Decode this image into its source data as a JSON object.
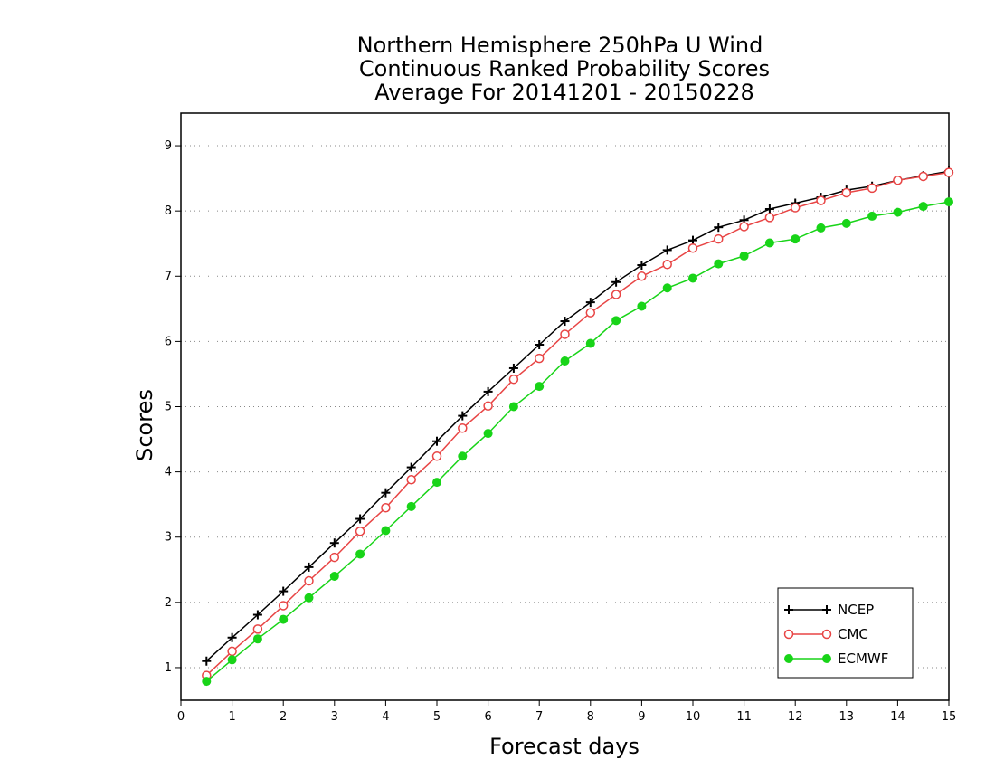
{
  "chart_data": {
    "type": "line",
    "title": [
      "Northern Hemisphere 250hPa U Wind",
      "Continuous Ranked Probability Scores",
      "Average For 20141201 - 20150228"
    ],
    "xlabel": "Forecast days",
    "ylabel": "Scores",
    "xlim": [
      0,
      15
    ],
    "ylim": [
      0.5,
      9.5
    ],
    "xticks": [
      "0",
      "1",
      "2",
      "3",
      "4",
      "5",
      "6",
      "7",
      "8",
      "9",
      "10",
      "11",
      "12",
      "13",
      "14",
      "15"
    ],
    "yticks": [
      "1",
      "2",
      "3",
      "4",
      "5",
      "6",
      "7",
      "8",
      "9"
    ],
    "grid": "horizontal dotted",
    "legend_position": "bottom-right",
    "x": [
      0.5,
      1,
      1.5,
      2,
      2.5,
      3,
      3.5,
      4,
      4.5,
      5,
      5.5,
      6,
      6.5,
      7,
      7.5,
      8,
      8.5,
      9,
      9.5,
      10,
      10.5,
      11,
      11.5,
      12,
      12.5,
      13,
      13.5,
      14,
      14.5,
      15
    ],
    "series": [
      {
        "name": "NCEP",
        "color": "#000000",
        "marker": "plus",
        "values": [
          1.1,
          1.46,
          1.81,
          2.17,
          2.54,
          2.91,
          3.28,
          3.68,
          4.07,
          4.47,
          4.86,
          5.23,
          5.59,
          5.95,
          6.31,
          6.6,
          6.91,
          7.17,
          7.4,
          7.55,
          7.75,
          7.86,
          8.03,
          8.12,
          8.21,
          8.32,
          8.38,
          8.47,
          8.54,
          8.61
        ]
      },
      {
        "name": "CMC",
        "color": "#e84545",
        "marker": "open-circle",
        "values": [
          0.88,
          1.25,
          1.59,
          1.95,
          2.33,
          2.69,
          3.09,
          3.45,
          3.88,
          4.24,
          4.67,
          5.01,
          5.42,
          5.74,
          6.11,
          6.44,
          6.72,
          7.0,
          7.18,
          7.43,
          7.57,
          7.76,
          7.9,
          8.05,
          8.16,
          8.28,
          8.35,
          8.47,
          8.53,
          8.59
        ]
      },
      {
        "name": "ECMWF",
        "color": "#18d418",
        "marker": "filled-circle",
        "values": [
          0.79,
          1.12,
          1.44,
          1.74,
          2.07,
          2.4,
          2.74,
          3.1,
          3.47,
          3.84,
          4.24,
          4.59,
          5.0,
          5.31,
          5.7,
          5.97,
          6.32,
          6.54,
          6.82,
          6.97,
          7.19,
          7.31,
          7.51,
          7.57,
          7.74,
          7.81,
          7.92,
          7.98,
          8.07,
          8.14
        ]
      }
    ]
  }
}
